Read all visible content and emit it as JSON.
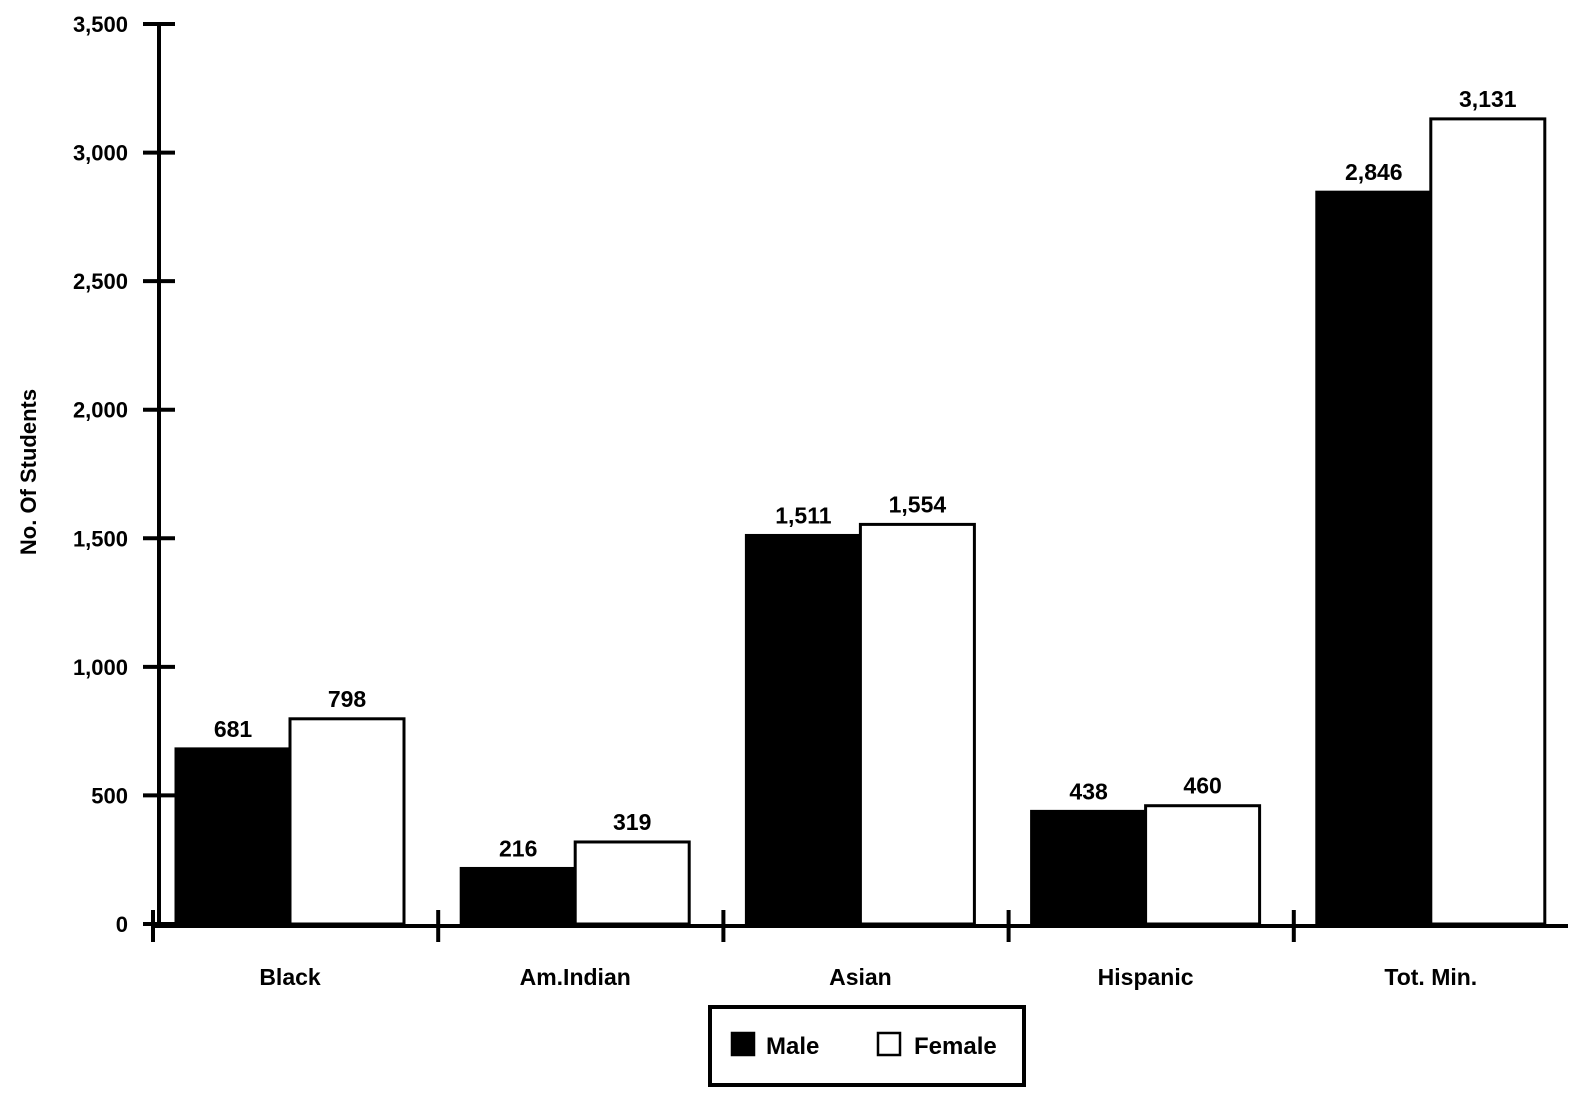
{
  "chart_data": {
    "type": "bar",
    "title": "",
    "xlabel": "",
    "ylabel": "No. Of Students",
    "ylim": [
      0,
      3500
    ],
    "yticks": [
      0,
      500,
      1000,
      1500,
      2000,
      2500,
      3000,
      3500
    ],
    "ytick_labels": [
      "0",
      "500",
      "1,000",
      "1,500",
      "2,000",
      "2,500",
      "3,000",
      "3,500"
    ],
    "categories": [
      "Black",
      "Am.Indian",
      "Asian",
      "Hispanic",
      "Tot. Min."
    ],
    "series": [
      {
        "name": "Male",
        "values": [
          681,
          216,
          1511,
          438,
          2846
        ],
        "labels": [
          "681",
          "216",
          "1,511",
          "438",
          "2,846"
        ],
        "color": "#000000"
      },
      {
        "name": "Female",
        "values": [
          798,
          319,
          1554,
          460,
          3131
        ],
        "labels": [
          "798",
          "319",
          "1,554",
          "460",
          "3,131"
        ],
        "color": "#ffffff"
      }
    ],
    "grid": false,
    "legend": "bottom-center"
  }
}
